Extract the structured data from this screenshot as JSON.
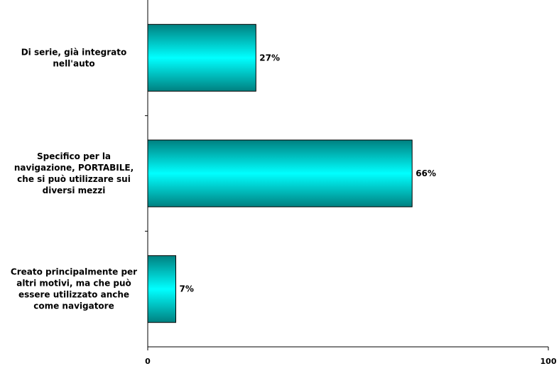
{
  "colors": {
    "bar_edge": "#008080",
    "bar_center": "#00FFFF",
    "bar_stroke": "#000000",
    "axis": "#000000"
  },
  "chart_data": {
    "type": "bar",
    "orientation": "horizontal",
    "categories": [
      [
        "Di serie, già integrato",
        "nell'auto"
      ],
      [
        "Specifico per la",
        "navigazione, PORTABILE,",
        "che si può utilizzare sui",
        "diversi mezzi"
      ],
      [
        "Creato principalmente per",
        "altri motivi, ma che può",
        "essere utilizzato anche",
        "come navigatore"
      ]
    ],
    "values": [
      27,
      66,
      7
    ],
    "data_labels": [
      "27%",
      "66%",
      "7%"
    ],
    "xlim": [
      0,
      100
    ],
    "x_ticks": [
      0,
      100
    ],
    "x_tick_labels": [
      "0",
      "100"
    ],
    "grid": false,
    "legend": "none",
    "title": "",
    "xlabel": "",
    "ylabel": ""
  }
}
